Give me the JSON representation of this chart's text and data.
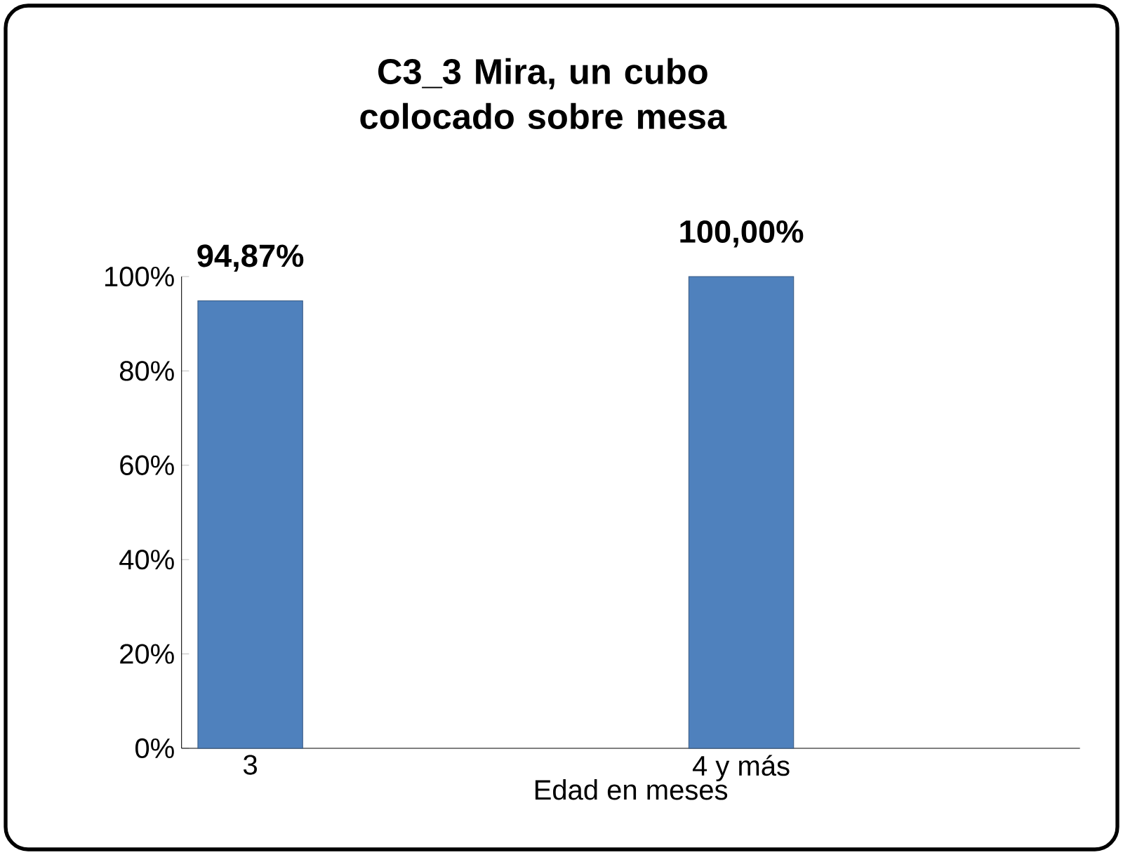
{
  "chart_data": {
    "type": "bar",
    "title": "C3_3 Mira, un cubo colocado sobre mesa",
    "xlabel": "Edad en  meses",
    "categories": [
      "3",
      "4 y más"
    ],
    "values": [
      94.87,
      100
    ],
    "value_labels": [
      "94,87%",
      "100,00%"
    ],
    "color": "#4f81bd",
    "ylim": [
      0,
      100
    ],
    "yticks": [
      {
        "value": 0,
        "label": "0%"
      },
      {
        "value": 20,
        "label": "20%"
      },
      {
        "value": 40,
        "label": "40%"
      },
      {
        "value": 60,
        "label": "60%"
      },
      {
        "value": 80,
        "label": "80%"
      },
      {
        "value": 100,
        "label": "100%"
      }
    ],
    "grid": false
  }
}
